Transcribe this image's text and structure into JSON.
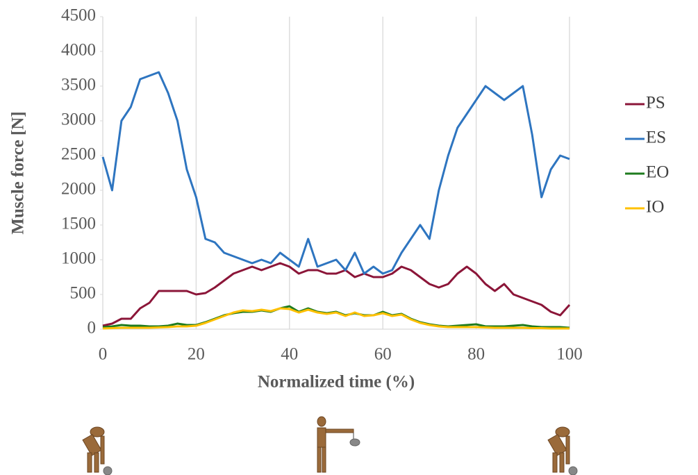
{
  "chart_data": {
    "type": "line",
    "x_label": "Normalized time (%)",
    "y_label": "Muscle force [N]",
    "x": [
      0,
      2,
      4,
      6,
      8,
      10,
      12,
      14,
      16,
      18,
      20,
      22,
      24,
      26,
      28,
      30,
      32,
      34,
      36,
      38,
      40,
      42,
      44,
      46,
      48,
      50,
      52,
      54,
      56,
      58,
      60,
      62,
      64,
      66,
      68,
      70,
      72,
      74,
      76,
      78,
      80,
      82,
      84,
      86,
      88,
      90,
      92,
      94,
      96,
      98,
      100
    ],
    "series": [
      {
        "name": "PS",
        "color": "#8b1538",
        "values": [
          50,
          80,
          150,
          150,
          300,
          380,
          550,
          550,
          550,
          550,
          500,
          520,
          600,
          700,
          800,
          850,
          900,
          850,
          900,
          950,
          900,
          800,
          850,
          850,
          800,
          800,
          850,
          750,
          800,
          750,
          750,
          800,
          900,
          850,
          750,
          650,
          600,
          650,
          800,
          900,
          800,
          650,
          550,
          650,
          500,
          450,
          400,
          350,
          250,
          200,
          350
        ]
      },
      {
        "name": "ES",
        "color": "#2e75c0",
        "values": [
          2480,
          2000,
          3000,
          3200,
          3600,
          3650,
          3700,
          3400,
          3000,
          2300,
          1900,
          1300,
          1250,
          1100,
          1050,
          1000,
          950,
          1000,
          950,
          1100,
          1000,
          900,
          1300,
          900,
          950,
          1000,
          850,
          1100,
          800,
          900,
          800,
          850,
          1100,
          1300,
          1500,
          1300,
          2000,
          2500,
          2900,
          3100,
          3300,
          3500,
          3400,
          3300,
          3400,
          3500,
          2800,
          1900,
          2300,
          2500,
          2450
        ]
      },
      {
        "name": "EO",
        "color": "#1e7b1e",
        "values": [
          30,
          40,
          60,
          50,
          50,
          40,
          40,
          50,
          80,
          60,
          60,
          100,
          150,
          200,
          230,
          250,
          250,
          270,
          250,
          300,
          330,
          250,
          300,
          250,
          230,
          250,
          200,
          230,
          200,
          200,
          250,
          200,
          220,
          150,
          100,
          70,
          50,
          40,
          50,
          60,
          70,
          40,
          40,
          40,
          50,
          60,
          40,
          30,
          30,
          30,
          20
        ]
      },
      {
        "name": "IO",
        "color": "#ffc000",
        "values": [
          10,
          15,
          20,
          20,
          20,
          20,
          25,
          30,
          40,
          40,
          50,
          90,
          140,
          190,
          240,
          270,
          260,
          280,
          260,
          300,
          290,
          240,
          280,
          240,
          220,
          240,
          190,
          240,
          190,
          200,
          230,
          190,
          210,
          140,
          90,
          60,
          40,
          30,
          30,
          30,
          30,
          25,
          20,
          20,
          20,
          20,
          15,
          15,
          10,
          10,
          10
        ]
      }
    ],
    "xlim": [
      0,
      100
    ],
    "xticks": [
      0,
      20,
      40,
      60,
      80,
      100
    ],
    "ylim": [
      0,
      4500
    ],
    "yticks": [
      0,
      500,
      1000,
      1500,
      2000,
      2500,
      3000,
      3500,
      4000,
      4500
    ],
    "grid": "x",
    "legend": "right"
  }
}
